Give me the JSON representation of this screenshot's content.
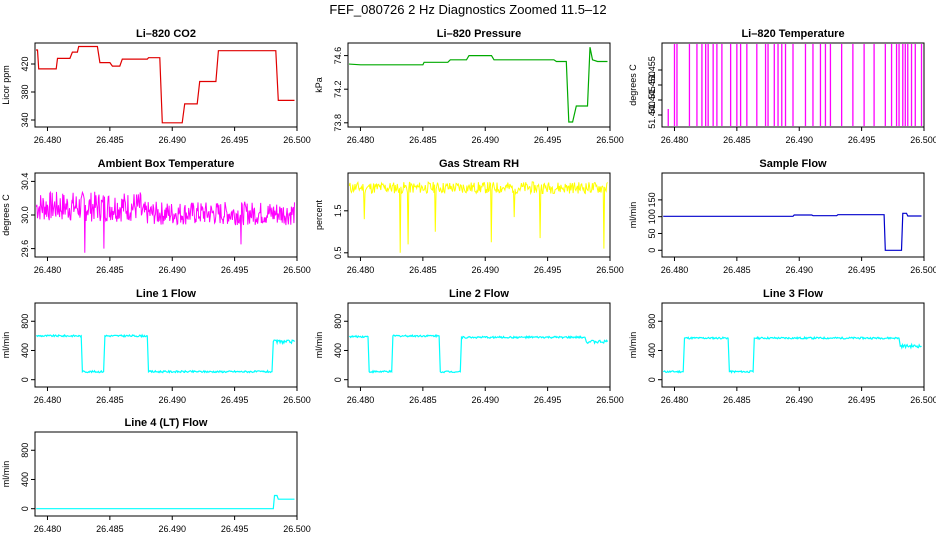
{
  "figure_title": "FEF_080726  2 Hz Diagnostics Zoomed 11.5–12",
  "chart_data": [
    {
      "id": "co2",
      "type": "line",
      "title": "Li–820 CO2",
      "ylabel": "Licor ppm",
      "color": "#e00000",
      "xlim": [
        26.479,
        26.5
      ],
      "ylim": [
        330,
        450
      ],
      "xticks": [
        "26.480",
        "26.485",
        "26.490",
        "26.495",
        "26.500"
      ],
      "yticks": [
        "340",
        "380",
        "420"
      ],
      "style": "step",
      "x": [
        26.479,
        26.4792,
        26.4793,
        26.4807,
        26.4808,
        26.4818,
        26.482,
        26.4824,
        26.4825,
        26.484,
        26.4842,
        26.485,
        26.4852,
        26.4858,
        26.486,
        26.488,
        26.4881,
        26.489,
        26.4892,
        26.4908,
        26.491,
        26.492,
        26.4922,
        26.4935,
        26.4937,
        26.4983,
        26.4985,
        26.4998
      ],
      "y": [
        440,
        440,
        413,
        413,
        428,
        428,
        437,
        437,
        445,
        445,
        422,
        422,
        417,
        417,
        427,
        427,
        429,
        429,
        336,
        336,
        363,
        363,
        395,
        395,
        439,
        439,
        368,
        368
      ]
    },
    {
      "id": "pressure",
      "type": "line",
      "title": "Li–820 Pressure",
      "ylabel": "kPa",
      "color": "#00aa00",
      "xlim": [
        26.479,
        26.5
      ],
      "ylim": [
        73.75,
        74.75
      ],
      "xticks": [
        "26.480",
        "26.485",
        "26.490",
        "26.495",
        "26.500"
      ],
      "yticks": [
        "73.8",
        "74.2",
        "74.6"
      ],
      "style": "step",
      "x": [
        26.479,
        26.48,
        26.485,
        26.4851,
        26.487,
        26.4872,
        26.4885,
        26.4887,
        26.4905,
        26.4907,
        26.4955,
        26.4957,
        26.4965,
        26.4967,
        26.497,
        26.4973,
        26.4982,
        26.4984,
        26.4986,
        26.499,
        26.4998
      ],
      "y": [
        74.5,
        74.49,
        74.49,
        74.52,
        74.52,
        74.55,
        74.55,
        74.6,
        74.6,
        74.55,
        74.55,
        74.53,
        74.53,
        73.81,
        73.81,
        74.0,
        74.0,
        74.7,
        74.55,
        74.53,
        74.53
      ]
    },
    {
      "id": "temperature",
      "type": "line",
      "title": "Li–820 Temperature",
      "ylabel": "degrees C",
      "color": "#ff00ff",
      "xlim": [
        26.479,
        26.5
      ],
      "ylim": [
        51.436,
        51.464
      ],
      "xticks": [
        "26.480",
        "26.485",
        "26.490",
        "26.495",
        "26.500"
      ],
      "yticks": [
        "51.440",
        "51.445",
        "51.450",
        "51.455"
      ],
      "style": "spikes",
      "base": 51.436,
      "spike_x": [
        26.4795,
        26.48,
        26.4802,
        26.4812,
        26.4818,
        26.4822,
        26.4825,
        26.4827,
        26.4831,
        26.4834,
        26.4838,
        26.4845,
        26.485,
        26.4853,
        26.4858,
        26.4866,
        26.4873,
        26.4875,
        26.488,
        26.4883,
        26.4886,
        26.4889,
        26.4895,
        26.4905,
        26.4911,
        26.4917,
        26.4921,
        26.4925,
        26.4934,
        26.4943,
        26.4952,
        26.496,
        26.4969,
        26.4974,
        26.4978,
        26.498,
        26.4983,
        26.4985,
        26.4987,
        26.499,
        26.4993,
        26.4998
      ],
      "spike_y": [
        51.442,
        51.464,
        51.464,
        51.464,
        51.464,
        51.464,
        51.464,
        51.464,
        51.464,
        51.464,
        51.464,
        51.464,
        51.464,
        51.464,
        51.464,
        51.464,
        51.464,
        51.464,
        51.464,
        51.464,
        51.464,
        51.464,
        51.464,
        51.464,
        51.464,
        51.464,
        51.464,
        51.464,
        51.464,
        51.464,
        51.464,
        51.464,
        51.464,
        51.464,
        51.464,
        51.464,
        51.464,
        51.464,
        51.464,
        51.464,
        51.464,
        51.464
      ]
    },
    {
      "id": "ambient",
      "type": "line",
      "title": "Ambient Box Temperature",
      "ylabel": "degrees C",
      "color": "#ff00ff",
      "xlim": [
        26.479,
        26.5
      ],
      "ylim": [
        29.5,
        30.5
      ],
      "xticks": [
        "26.480",
        "26.485",
        "26.490",
        "26.495",
        "26.500"
      ],
      "yticks": [
        "29.6",
        "30.0",
        "30.4"
      ],
      "style": "noise",
      "x_start": 26.4791,
      "x_end": 26.4998,
      "n": 420,
      "seed": 7,
      "segments": [
        {
          "to": 26.4875,
          "center": 30.1,
          "amp": 0.18
        },
        {
          "to": 26.4998,
          "center": 30.02,
          "amp": 0.14
        }
      ],
      "dips": [
        {
          "x": 26.483,
          "y": 29.55
        },
        {
          "x": 26.4845,
          "y": 29.6
        },
        {
          "x": 26.4955,
          "y": 29.65
        }
      ]
    },
    {
      "id": "rh",
      "type": "line",
      "title": "Gas Stream RH",
      "ylabel": "percent",
      "color": "#ffff00",
      "xlim": [
        26.479,
        26.5
      ],
      "ylim": [
        0.4,
        2.4
      ],
      "xticks": [
        "26.480",
        "26.485",
        "26.490",
        "26.495",
        "26.500"
      ],
      "yticks": [
        "0.5",
        "1.5"
      ],
      "style": "noise",
      "x_start": 26.4791,
      "x_end": 26.4998,
      "n": 360,
      "seed": 11,
      "segments": [
        {
          "to": 26.4998,
          "center": 2.05,
          "amp": 0.14
        }
      ],
      "dips": [
        {
          "x": 26.4803,
          "y": 1.3
        },
        {
          "x": 26.4832,
          "y": 0.5
        },
        {
          "x": 26.4838,
          "y": 0.7
        },
        {
          "x": 26.486,
          "y": 1.0
        },
        {
          "x": 26.4905,
          "y": 0.75
        },
        {
          "x": 26.4923,
          "y": 1.35
        },
        {
          "x": 26.4944,
          "y": 0.85
        },
        {
          "x": 26.4995,
          "y": 0.6
        }
      ]
    },
    {
      "id": "sample",
      "type": "line",
      "title": "Sample Flow",
      "ylabel": "ml/min",
      "color": "#0000cc",
      "xlim": [
        26.479,
        26.5
      ],
      "ylim": [
        -20,
        230
      ],
      "xticks": [
        "26.480",
        "26.485",
        "26.490",
        "26.495",
        "26.500"
      ],
      "yticks": [
        "0",
        "50",
        "100",
        "150"
      ],
      "style": "step",
      "x": [
        26.4791,
        26.4895,
        26.4896,
        26.491,
        26.4911,
        26.493,
        26.4931,
        26.4968,
        26.4969,
        26.4982,
        26.4983,
        26.4986,
        26.4987,
        26.4998
      ],
      "y": [
        101,
        101,
        105,
        105,
        103,
        103,
        106,
        106,
        0,
        0,
        110,
        110,
        102,
        102
      ]
    },
    {
      "id": "line1",
      "type": "line",
      "title": "Line 1 Flow",
      "ylabel": "ml/min",
      "color": "#00ffff",
      "xlim": [
        26.479,
        26.5
      ],
      "ylim": [
        -100,
        1050
      ],
      "xticks": [
        "26.480",
        "26.485",
        "26.490",
        "26.495",
        "26.500"
      ],
      "yticks": [
        "0",
        "400",
        "800"
      ],
      "style": "step",
      "x": [
        26.4791,
        26.4827,
        26.4828,
        26.4845,
        26.4846,
        26.488,
        26.4881,
        26.498,
        26.4981,
        26.4998
      ],
      "y": [
        600,
        600,
        110,
        110,
        600,
        600,
        110,
        110,
        520,
        520
      ],
      "ripple": 25,
      "wide_end": {
        "from": 26.4981,
        "amp": 45
      }
    },
    {
      "id": "line2",
      "type": "line",
      "title": "Line 2 Flow",
      "ylabel": "ml/min",
      "color": "#00ffff",
      "xlim": [
        26.479,
        26.5
      ],
      "ylim": [
        -100,
        1050
      ],
      "xticks": [
        "26.480",
        "26.485",
        "26.490",
        "26.495",
        "26.500"
      ],
      "yticks": [
        "0",
        "400",
        "800"
      ],
      "style": "step",
      "x": [
        26.4791,
        26.4806,
        26.4807,
        26.4825,
        26.4826,
        26.4863,
        26.4864,
        26.488,
        26.4881,
        26.498,
        26.4981,
        26.4998
      ],
      "y": [
        590,
        590,
        110,
        110,
        600,
        600,
        110,
        110,
        580,
        580,
        520,
        520
      ],
      "ripple": 25,
      "wide_end": {
        "from": 26.4981,
        "amp": 45
      }
    },
    {
      "id": "line3",
      "type": "line",
      "title": "Line 3 Flow",
      "ylabel": "ml/min",
      "color": "#00ffff",
      "xlim": [
        26.479,
        26.5
      ],
      "ylim": [
        -100,
        1050
      ],
      "xticks": [
        "26.480",
        "26.485",
        "26.490",
        "26.495",
        "26.500"
      ],
      "yticks": [
        "0",
        "400",
        "800"
      ],
      "style": "step",
      "x": [
        26.4791,
        26.4807,
        26.4808,
        26.4843,
        26.4844,
        26.4863,
        26.4864,
        26.498,
        26.4981,
        26.4998
      ],
      "y": [
        110,
        110,
        570,
        570,
        110,
        110,
        570,
        570,
        460,
        460
      ],
      "ripple": 25,
      "wide_end": {
        "from": 26.4981,
        "amp": 45
      }
    },
    {
      "id": "line4",
      "type": "line",
      "title": "Line 4 (LT) Flow",
      "ylabel": "ml/min",
      "color": "#00ffff",
      "xlim": [
        26.479,
        26.5
      ],
      "ylim": [
        -100,
        1050
      ],
      "xticks": [
        "26.480",
        "26.485",
        "26.490",
        "26.495",
        "26.500"
      ],
      "yticks": [
        "0",
        "400",
        "800"
      ],
      "style": "step",
      "x": [
        26.4791,
        26.4981,
        26.4982,
        26.4984,
        26.4985,
        26.4998
      ],
      "y": [
        0,
        0,
        180,
        180,
        130,
        130
      ],
      "ripple": 0
    }
  ]
}
